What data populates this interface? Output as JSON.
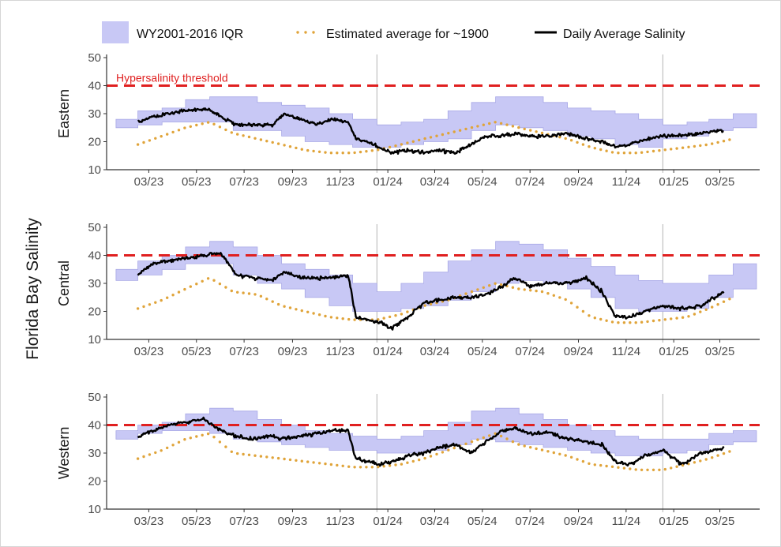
{
  "chart_data": {
    "type": "line",
    "ylabel": "Florida Bay Salinity",
    "legend": {
      "placement": "top",
      "entries": [
        {
          "name": "WY2001-2016 IQR",
          "kind": "band",
          "color": "#c8c8f5"
        },
        {
          "name": "Estimated average for ~1900",
          "kind": "dotted-line",
          "color": "#e0a43a"
        },
        {
          "name": "Daily Average Salinity",
          "kind": "line",
          "color": "#000000"
        }
      ]
    },
    "colors": {
      "band_fill": "#c8c8f5",
      "band_edge": "#a9a9e6",
      "historic": "#e0a43a",
      "daily": "#000000",
      "threshold": "#e02020",
      "year_line": "#b3b3b3",
      "axis": "#333333"
    },
    "x_tick_labels": [
      "03/23",
      "05/23",
      "07/23",
      "09/23",
      "11/23",
      "01/24",
      "03/24",
      "05/24",
      "07/24",
      "09/24",
      "11/24",
      "01/25",
      "03/25"
    ],
    "xlim": [
      "2023-01-20",
      "2025-05-05"
    ],
    "year_boundaries": [
      "2024-01-01",
      "2025-01-01"
    ],
    "ylim": [
      10,
      50
    ],
    "y_ticks": [
      10,
      20,
      30,
      40,
      50
    ],
    "threshold": {
      "value": 40,
      "label": "Hypersalinity threshold"
    },
    "panels": [
      {
        "name": "Eastern",
        "show_threshold_label": true,
        "iqr_band": {
          "months": [
            "2023-02",
            "2023-03",
            "2023-04",
            "2023-05",
            "2023-06",
            "2023-07",
            "2023-08",
            "2023-09",
            "2023-10",
            "2023-11",
            "2023-12",
            "2024-01",
            "2024-02",
            "2024-03",
            "2024-04",
            "2024-05",
            "2024-06",
            "2024-07",
            "2024-08",
            "2024-09",
            "2024-10",
            "2024-11",
            "2024-12",
            "2025-01",
            "2025-02",
            "2025-03",
            "2025-04"
          ],
          "low": [
            25,
            26,
            27,
            27,
            27,
            24,
            24,
            22,
            20,
            19,
            18,
            18,
            19,
            20,
            21,
            24,
            26,
            25,
            24,
            22,
            21,
            19,
            18,
            21,
            22,
            24,
            25
          ],
          "high": [
            28,
            31,
            32,
            35,
            36,
            36,
            34,
            33,
            32,
            30,
            28,
            26,
            27,
            28,
            31,
            34,
            36,
            36,
            34,
            32,
            31,
            30,
            28,
            26,
            27,
            28,
            30
          ]
        },
        "historic_avg": {
          "dates": [
            "2023-03-01",
            "2023-04-01",
            "2023-05-01",
            "2023-06-01",
            "2023-07-01",
            "2023-08-01",
            "2023-09-01",
            "2023-10-01",
            "2023-11-01",
            "2023-12-01",
            "2024-01-01",
            "2024-02-01",
            "2024-03-01",
            "2024-04-01",
            "2024-05-01",
            "2024-06-01",
            "2024-07-01",
            "2024-08-01",
            "2024-09-01",
            "2024-10-01",
            "2024-11-01",
            "2024-12-01",
            "2025-01-01",
            "2025-02-01",
            "2025-03-01",
            "2025-04-01"
          ],
          "values": [
            19,
            22,
            25,
            27,
            23,
            21,
            19,
            17,
            16,
            16,
            17,
            19,
            21,
            23,
            25,
            27,
            25,
            23,
            21,
            18,
            16,
            16,
            17,
            18,
            19,
            21
          ]
        },
        "daily_avg": {
          "dates": [
            "2023-03-01",
            "2023-03-20",
            "2023-04-10",
            "2023-05-01",
            "2023-05-25",
            "2023-06-15",
            "2023-07-05",
            "2023-07-25",
            "2023-08-20",
            "2023-09-05",
            "2023-09-25",
            "2023-10-15",
            "2023-11-05",
            "2023-11-25",
            "2023-12-05",
            "2023-12-20",
            "2024-01-05",
            "2024-01-20",
            "2024-02-10",
            "2024-03-01",
            "2024-03-20",
            "2024-04-10",
            "2024-05-01",
            "2024-05-20",
            "2024-06-10",
            "2024-06-25",
            "2024-07-15",
            "2024-08-10",
            "2024-09-01",
            "2024-09-25",
            "2024-10-15",
            "2024-11-01",
            "2024-11-20",
            "2024-12-10",
            "2025-01-01",
            "2025-01-25",
            "2025-02-20",
            "2025-03-20"
          ],
          "values": [
            27,
            29,
            30,
            31,
            32,
            29,
            26,
            26,
            26,
            30,
            28,
            26,
            28,
            27,
            21,
            20,
            18,
            16,
            17,
            16,
            17,
            16,
            19,
            22,
            22,
            23,
            22,
            22,
            23,
            21,
            20,
            18,
            19,
            21,
            22,
            22,
            23,
            24
          ]
        }
      },
      {
        "name": "Central",
        "show_threshold_label": false,
        "iqr_band": {
          "months": [
            "2023-02",
            "2023-03",
            "2023-04",
            "2023-05",
            "2023-06",
            "2023-07",
            "2023-08",
            "2023-09",
            "2023-10",
            "2023-11",
            "2023-12",
            "2024-01",
            "2024-02",
            "2024-03",
            "2024-04",
            "2024-05",
            "2024-06",
            "2024-07",
            "2024-08",
            "2024-09",
            "2024-10",
            "2024-11",
            "2024-12",
            "2025-01",
            "2025-02",
            "2025-03",
            "2025-04"
          ],
          "low": [
            31,
            33,
            35,
            37,
            37,
            33,
            30,
            28,
            25,
            22,
            20,
            20,
            21,
            22,
            24,
            27,
            30,
            31,
            30,
            28,
            25,
            21,
            20,
            20,
            21,
            25,
            28
          ],
          "high": [
            35,
            38,
            40,
            43,
            45,
            43,
            40,
            37,
            35,
            33,
            30,
            27,
            30,
            34,
            38,
            42,
            45,
            44,
            42,
            39,
            36,
            33,
            31,
            30,
            30,
            33,
            37
          ]
        },
        "historic_avg": {
          "dates": [
            "2023-03-01",
            "2023-04-01",
            "2023-05-01",
            "2023-06-01",
            "2023-07-01",
            "2023-08-01",
            "2023-09-01",
            "2023-10-01",
            "2023-11-01",
            "2023-12-01",
            "2024-01-01",
            "2024-02-01",
            "2024-03-01",
            "2024-04-01",
            "2024-05-01",
            "2024-06-01",
            "2024-07-01",
            "2024-08-01",
            "2024-09-01",
            "2024-10-01",
            "2024-11-01",
            "2024-12-01",
            "2025-01-01",
            "2025-02-01",
            "2025-03-01",
            "2025-04-01"
          ],
          "values": [
            21,
            24,
            28,
            32,
            27,
            26,
            22,
            20,
            18,
            17,
            17,
            19,
            22,
            24,
            27,
            30,
            28,
            27,
            24,
            18,
            16,
            16,
            17,
            18,
            21,
            25
          ]
        },
        "daily_avg": {
          "dates": [
            "2023-03-01",
            "2023-03-20",
            "2023-04-10",
            "2023-05-01",
            "2023-05-25",
            "2023-06-15",
            "2023-07-05",
            "2023-07-25",
            "2023-08-20",
            "2023-09-05",
            "2023-09-25",
            "2023-10-15",
            "2023-11-05",
            "2023-11-25",
            "2023-12-05",
            "2023-12-20",
            "2024-01-05",
            "2024-01-20",
            "2024-02-10",
            "2024-03-01",
            "2024-03-20",
            "2024-04-10",
            "2024-05-01",
            "2024-05-20",
            "2024-06-10",
            "2024-06-25",
            "2024-07-15",
            "2024-08-10",
            "2024-09-01",
            "2024-09-25",
            "2024-10-15",
            "2024-11-01",
            "2024-11-20",
            "2024-12-10",
            "2025-01-01",
            "2025-01-25",
            "2025-02-20",
            "2025-03-20"
          ],
          "values": [
            33,
            37,
            38,
            39,
            40,
            41,
            33,
            32,
            31,
            34,
            32,
            32,
            32,
            33,
            18,
            17,
            16,
            14,
            18,
            23,
            24,
            25,
            25,
            26,
            29,
            32,
            29,
            30,
            30,
            32,
            27,
            18,
            18,
            20,
            22,
            21,
            22,
            27
          ]
        }
      },
      {
        "name": "Western",
        "show_threshold_label": false,
        "iqr_band": {
          "months": [
            "2023-02",
            "2023-03",
            "2023-04",
            "2023-05",
            "2023-06",
            "2023-07",
            "2023-08",
            "2023-09",
            "2023-10",
            "2023-11",
            "2023-12",
            "2024-01",
            "2024-02",
            "2024-03",
            "2024-04",
            "2024-05",
            "2024-06",
            "2024-07",
            "2024-08",
            "2024-09",
            "2024-10",
            "2024-11",
            "2024-12",
            "2025-01",
            "2025-02",
            "2025-03",
            "2025-04"
          ],
          "low": [
            35,
            37,
            38,
            38,
            37,
            35,
            34,
            33,
            32,
            31,
            31,
            30,
            30,
            31,
            33,
            35,
            34,
            33,
            32,
            31,
            30,
            29,
            29,
            30,
            31,
            33,
            34
          ],
          "high": [
            38,
            40,
            41,
            44,
            46,
            45,
            42,
            40,
            38,
            37,
            36,
            35,
            36,
            38,
            41,
            45,
            46,
            44,
            42,
            40,
            38,
            36,
            35,
            35,
            35,
            37,
            38
          ]
        },
        "historic_avg": {
          "dates": [
            "2023-03-01",
            "2023-04-01",
            "2023-05-01",
            "2023-06-01",
            "2023-07-01",
            "2023-08-01",
            "2023-09-01",
            "2023-10-01",
            "2023-11-01",
            "2023-12-01",
            "2024-01-01",
            "2024-02-01",
            "2024-03-01",
            "2024-04-01",
            "2024-05-01",
            "2024-06-01",
            "2024-07-01",
            "2024-08-01",
            "2024-09-01",
            "2024-10-01",
            "2024-11-01",
            "2024-12-01",
            "2025-01-01",
            "2025-02-01",
            "2025-03-01",
            "2025-04-01"
          ],
          "values": [
            28,
            31,
            35,
            37,
            30,
            29,
            28,
            27,
            26,
            25,
            25,
            26,
            28,
            31,
            34,
            37,
            33,
            31,
            29,
            26,
            25,
            24,
            24,
            26,
            28,
            31
          ]
        },
        "daily_avg": {
          "dates": [
            "2023-03-01",
            "2023-03-20",
            "2023-04-10",
            "2023-05-01",
            "2023-05-25",
            "2023-06-15",
            "2023-07-05",
            "2023-07-25",
            "2023-08-20",
            "2023-09-05",
            "2023-09-25",
            "2023-10-15",
            "2023-11-05",
            "2023-11-25",
            "2023-12-05",
            "2023-12-20",
            "2024-01-05",
            "2024-01-20",
            "2024-02-10",
            "2024-03-01",
            "2024-03-20",
            "2024-04-10",
            "2024-05-01",
            "2024-05-20",
            "2024-06-10",
            "2024-06-25",
            "2024-07-15",
            "2024-08-10",
            "2024-09-01",
            "2024-09-25",
            "2024-10-15",
            "2024-11-01",
            "2024-11-20",
            "2024-12-10",
            "2025-01-01",
            "2025-01-25",
            "2025-02-20",
            "2025-03-20"
          ],
          "values": [
            36,
            38,
            40,
            41,
            42,
            38,
            36,
            35,
            36,
            35,
            36,
            37,
            38,
            38,
            28,
            27,
            26,
            27,
            29,
            30,
            32,
            33,
            30,
            34,
            38,
            39,
            37,
            37,
            35,
            34,
            33,
            27,
            26,
            29,
            31,
            26,
            30,
            32
          ]
        }
      }
    ]
  }
}
